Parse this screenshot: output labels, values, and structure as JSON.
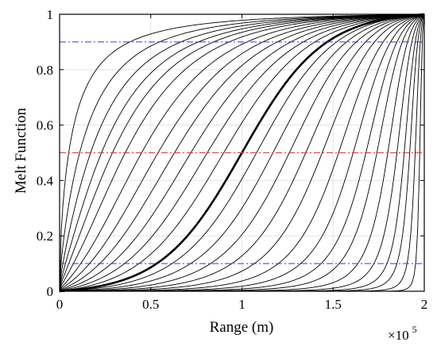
{
  "chart_data": {
    "type": "line",
    "xlabel": "Range (m)",
    "ylabel": "Melt Function",
    "x_multiplier": {
      "base": "×10",
      "exponent": "5"
    },
    "xlim": [
      0,
      200000
    ],
    "ylim": [
      0,
      1
    ],
    "xticks": [
      0,
      50000,
      100000,
      150000,
      200000
    ],
    "xtick_labels": [
      "0",
      "0.5",
      "1",
      "1.5",
      "2"
    ],
    "yticks": [
      0,
      0.2,
      0.4,
      0.6,
      0.8,
      1
    ],
    "ytick_labels": [
      "0",
      "0.2",
      "0.4",
      "0.6",
      "0.8",
      "1"
    ],
    "grid": true,
    "family": {
      "description_of_form": "generalized logistic melt curves through (0,0) and (200000,1); parameterized by x at which curve reaches 0.5",
      "x_half_values": [
        5000,
        11000,
        17000,
        23000,
        29000,
        36000,
        45000,
        54000,
        63000,
        72000,
        81000,
        90000,
        108000,
        117000,
        126000,
        135000,
        144000,
        153000,
        161000,
        168000,
        174000,
        180000,
        185000,
        189000,
        192000,
        195000,
        197500
      ],
      "color": "#000000"
    },
    "highlighted_series": {
      "x_half": 100000,
      "color": "#000000",
      "bold": true
    },
    "reference_lines": [
      {
        "y": 0.9,
        "color": "#2f3fd9",
        "style": "dash-dot"
      },
      {
        "y": 0.5,
        "color": "#d93a3a",
        "style": "dash-dot"
      },
      {
        "y": 0.1,
        "color": "#2f3fd9",
        "style": "dash-dot"
      }
    ]
  }
}
